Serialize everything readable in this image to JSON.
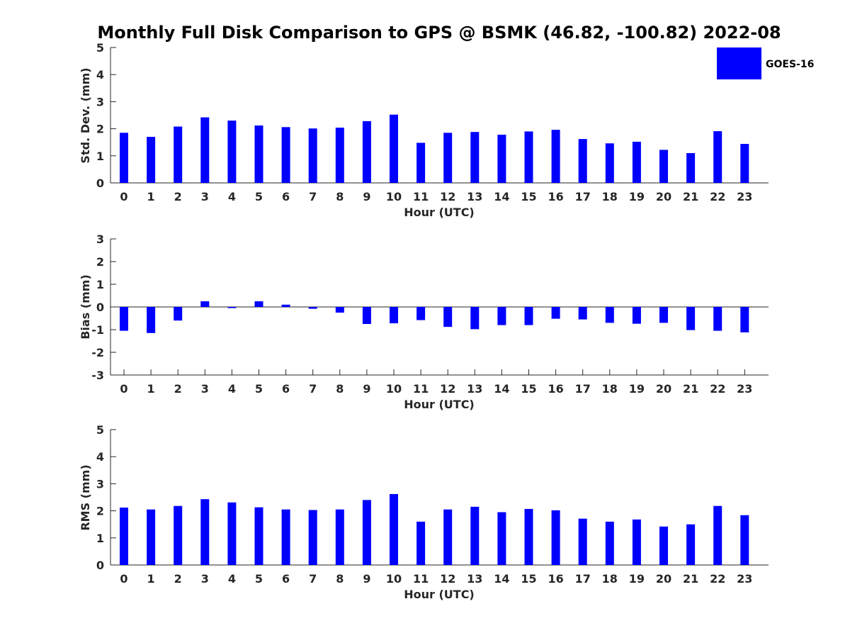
{
  "title": "Monthly Full Disk Comparison to GPS @ BSMK (46.82, -100.82) 2022-08",
  "legend": {
    "label": "GOES-16",
    "color": "#0000ff",
    "position": "top-right"
  },
  "chart_data": [
    {
      "type": "bar",
      "xlabel": "Hour (UTC)",
      "ylabel": "Std. Dev. (mm)",
      "ylim": [
        0,
        5
      ],
      "yticks": [
        0,
        1,
        2,
        3,
        4,
        5
      ],
      "categories": [
        "0",
        "1",
        "2",
        "3",
        "4",
        "5",
        "6",
        "7",
        "8",
        "9",
        "10",
        "11",
        "12",
        "13",
        "14",
        "15",
        "16",
        "17",
        "18",
        "19",
        "20",
        "21",
        "22",
        "23"
      ],
      "series": [
        {
          "name": "GOES-16",
          "color": "#0000ff",
          "values": [
            1.85,
            1.7,
            2.08,
            2.42,
            2.3,
            2.12,
            2.06,
            2.01,
            2.04,
            2.28,
            2.52,
            1.48,
            1.85,
            1.88,
            1.78,
            1.9,
            1.96,
            1.62,
            1.46,
            1.52,
            1.22,
            1.1,
            1.91,
            1.44
          ]
        }
      ]
    },
    {
      "type": "bar",
      "xlabel": "Hour (UTC)",
      "ylabel": "Bias (mm)",
      "ylim": [
        -3,
        3
      ],
      "yticks": [
        -3,
        -2,
        -1,
        0,
        1,
        2,
        3
      ],
      "categories": [
        "0",
        "1",
        "2",
        "3",
        "4",
        "5",
        "6",
        "7",
        "8",
        "9",
        "10",
        "11",
        "12",
        "13",
        "14",
        "15",
        "16",
        "17",
        "18",
        "19",
        "20",
        "21",
        "22",
        "23"
      ],
      "series": [
        {
          "name": "GOES-16",
          "color": "#0000ff",
          "values": [
            -1.05,
            -1.15,
            -0.6,
            0.25,
            -0.05,
            0.25,
            0.1,
            -0.08,
            -0.25,
            -0.75,
            -0.72,
            -0.58,
            -0.88,
            -0.98,
            -0.8,
            -0.8,
            -0.52,
            -0.55,
            -0.7,
            -0.74,
            -0.7,
            -1.02,
            -1.05,
            -1.12
          ]
        }
      ]
    },
    {
      "type": "bar",
      "xlabel": "Hour (UTC)",
      "ylabel": "RMS (mm)",
      "ylim": [
        0,
        5
      ],
      "yticks": [
        0,
        1,
        2,
        3,
        4,
        5
      ],
      "categories": [
        "0",
        "1",
        "2",
        "3",
        "4",
        "5",
        "6",
        "7",
        "8",
        "9",
        "10",
        "11",
        "12",
        "13",
        "14",
        "15",
        "16",
        "17",
        "18",
        "19",
        "20",
        "21",
        "22",
        "23"
      ],
      "series": [
        {
          "name": "GOES-16",
          "color": "#0000ff",
          "values": [
            2.12,
            2.05,
            2.18,
            2.43,
            2.31,
            2.13,
            2.05,
            2.03,
            2.05,
            2.4,
            2.62,
            1.6,
            2.05,
            2.15,
            1.95,
            2.07,
            2.02,
            1.71,
            1.6,
            1.68,
            1.42,
            1.5,
            2.18,
            1.84
          ]
        }
      ]
    }
  ]
}
